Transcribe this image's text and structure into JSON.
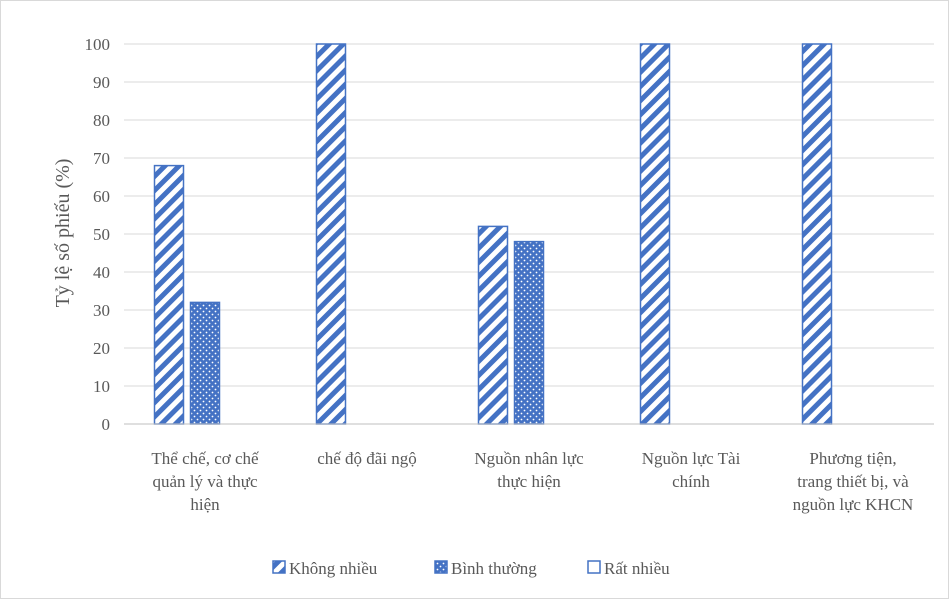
{
  "chart_data": {
    "type": "bar",
    "ylabel": "Tỷ lệ số phiếu (%)",
    "ylim": [
      0,
      100
    ],
    "yticks": [
      0,
      10,
      20,
      30,
      40,
      50,
      60,
      70,
      80,
      90,
      100
    ],
    "grid": true,
    "legend_position": "bottom",
    "categories": [
      [
        "Thể chế, cơ chế",
        "quản lý và thực",
        "hiện"
      ],
      [
        "chế độ đãi ngộ"
      ],
      [
        "Nguồn nhân lực",
        "thực hiện"
      ],
      [
        "Nguồn lực Tài",
        "chính"
      ],
      [
        "Phương tiện,",
        "trang thiết bị, và",
        "nguồn lực KHCN"
      ]
    ],
    "series": [
      {
        "name": "Không nhiều",
        "pattern": "diagonal-stripes",
        "color": "#4472c4",
        "values": [
          68,
          100,
          52,
          100,
          100
        ]
      },
      {
        "name": "Bình thường",
        "pattern": "dotted-fill",
        "color": "#4472c4",
        "values": [
          32,
          0,
          48,
          0,
          0
        ]
      },
      {
        "name": "Rất nhiều",
        "pattern": "outline",
        "color": "#4472c4",
        "values": [
          0,
          0,
          0,
          0,
          0
        ]
      }
    ]
  }
}
